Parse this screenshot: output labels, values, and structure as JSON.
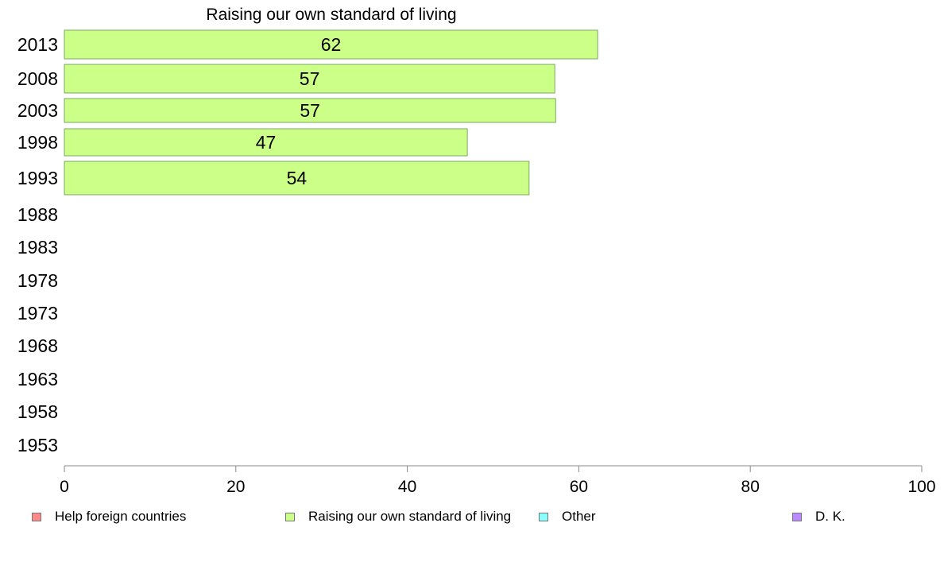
{
  "chart_data": {
    "type": "bar",
    "orientation": "horizontal",
    "title": "Raising our own standard of living",
    "categories": [
      "2013",
      "2008",
      "2003",
      "1998",
      "1993",
      "1988",
      "1983",
      "1978",
      "1973",
      "1968",
      "1963",
      "1958",
      "1953"
    ],
    "series": [
      {
        "name": "Raising our own standard of living",
        "color": "#ccff88",
        "values": [
          62.2,
          57.2,
          57.3,
          47.0,
          54.2,
          null,
          null,
          null,
          null,
          null,
          null,
          null,
          null
        ],
        "labels": [
          "62",
          "57",
          "57",
          "47",
          "54",
          "",
          "",
          "",
          "",
          "",
          "",
          "",
          ""
        ]
      }
    ],
    "xlim": [
      0,
      100
    ],
    "xticks": [
      "0",
      "20",
      "40",
      "60",
      "80",
      "100"
    ],
    "grid": false,
    "legend": {
      "position": "bottom",
      "entries": [
        {
          "label": "Help foreign countries",
          "color": "#ff8888"
        },
        {
          "label": "Raising our own standard of living",
          "color": "#ccff88"
        },
        {
          "label": "Other",
          "color": "#88ffff"
        },
        {
          "label": "D. K.",
          "color": "#bb88ff"
        }
      ]
    }
  }
}
